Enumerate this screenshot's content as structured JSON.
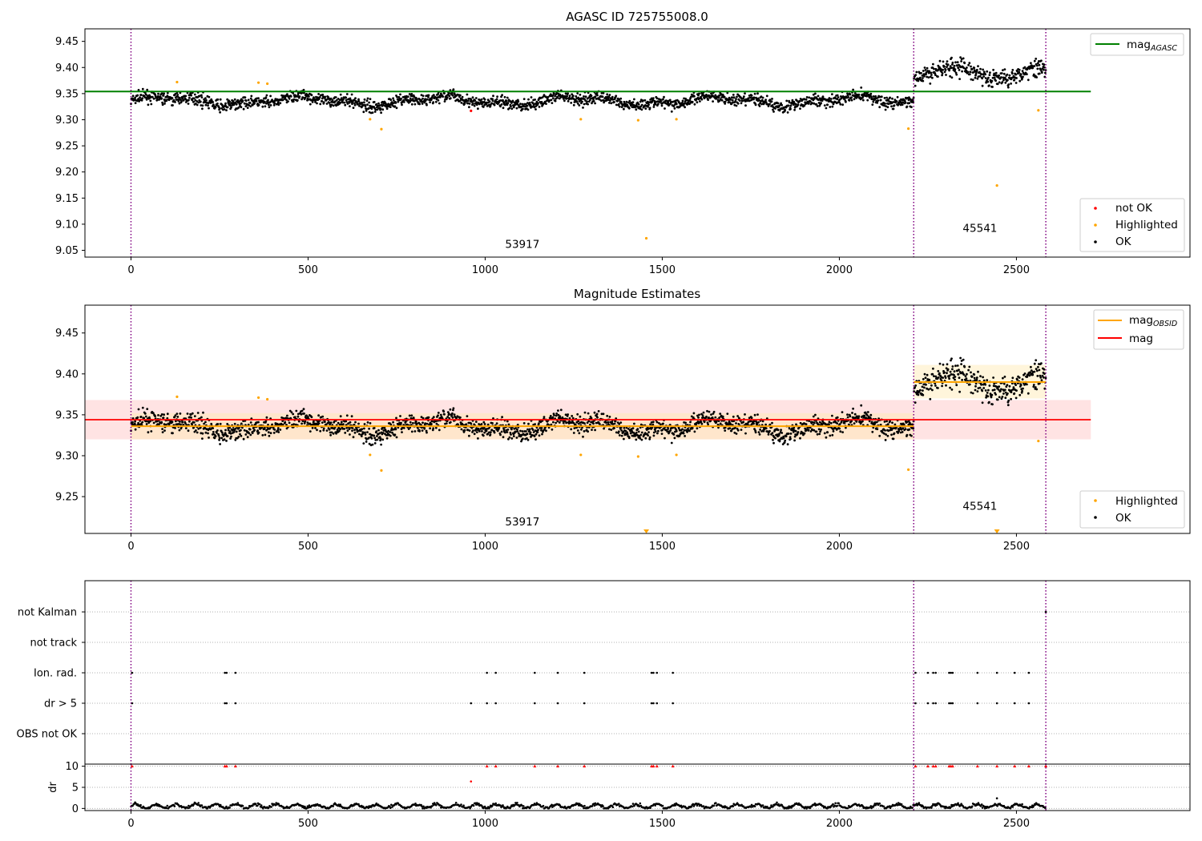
{
  "colors": {
    "ok": "#000000",
    "highlighted": "#ffa500",
    "not_ok": "#ff0000",
    "agasc_line": "#008000",
    "obsid_line": "#ffa500",
    "mag_line": "#ff0000",
    "obsid_boundary": "#800080",
    "band_red": "#ffcccc",
    "band_orange": "#ffe8b0"
  },
  "chart_data": [
    {
      "type": "scatter",
      "title": "AGASC ID 725755008.0",
      "xlabel": "",
      "ylabel": "",
      "xlim": [
        -130,
        2990
      ],
      "ylim": [
        9.037,
        9.474
      ],
      "xticks": [
        "0",
        "500",
        "1000",
        "1500",
        "2000",
        "2500"
      ],
      "yticks": [
        "9.05",
        "9.10",
        "9.15",
        "9.20",
        "9.25",
        "9.30",
        "9.35",
        "9.40",
        "9.45"
      ],
      "legend_top": {
        "position": "top-right",
        "entries": [
          {
            "label": "mag",
            "sub": "AGASC"
          }
        ]
      },
      "legend_bottom": {
        "position": "bottom-right",
        "entries": [
          "not OK",
          "Highlighted",
          "OK"
        ]
      },
      "mag_agasc": 9.354,
      "obsid_boundaries": [
        0,
        2210,
        2583
      ],
      "obsid_labels": [
        {
          "text": "53917",
          "x": 1105,
          "y": 9.055
        },
        {
          "text": "45541",
          "x": 2397,
          "y": 9.085
        }
      ],
      "segments": [
        {
          "x_start": 0,
          "x_end": 2210,
          "mean": 9.336,
          "spread": 0.011
        },
        {
          "x_start": 2210,
          "x_end": 2583,
          "mean": 9.39,
          "spread": 0.017
        }
      ],
      "highlighted_points": [
        [
          130,
          9.372
        ],
        [
          360,
          9.371
        ],
        [
          385,
          9.369
        ],
        [
          675,
          9.301
        ],
        [
          707,
          9.282
        ],
        [
          1270,
          9.301
        ],
        [
          1432,
          9.299
        ],
        [
          1455,
          9.073
        ],
        [
          1540,
          9.301
        ],
        [
          2195,
          9.283
        ],
        [
          2445,
          9.174
        ],
        [
          2562,
          9.318
        ]
      ],
      "not_ok_points": [
        [
          960,
          9.317
        ]
      ]
    },
    {
      "type": "scatter",
      "title": "Magnitude Estimates",
      "xlabel": "",
      "ylabel": "",
      "xlim": [
        -130,
        2990
      ],
      "ylim": [
        9.205,
        9.484
      ],
      "xticks": [
        "0",
        "500",
        "1000",
        "1500",
        "2000",
        "2500"
      ],
      "yticks": [
        "9.25",
        "9.30",
        "9.35",
        "9.40",
        "9.45"
      ],
      "legend_top": {
        "position": "top-right",
        "entries": [
          {
            "label": "mag",
            "sub": "OBSID"
          },
          {
            "label": "mag",
            "sub": ""
          }
        ]
      },
      "legend_bottom": {
        "position": "bottom-right",
        "entries": [
          "Highlighted",
          "OK"
        ]
      },
      "mag": 9.344,
      "mag_band": [
        9.32,
        9.368
      ],
      "obsid_mags": [
        {
          "x_start": 0,
          "x_end": 2210,
          "mag": 9.336,
          "band": [
            9.32,
            9.352
          ]
        },
        {
          "x_start": 2210,
          "x_end": 2583,
          "mag": 9.39,
          "band": [
            9.37,
            9.411
          ]
        }
      ],
      "obsid_labels": [
        {
          "text": "53917",
          "x": 1105,
          "y": 9.215
        },
        {
          "text": "45541",
          "x": 2397,
          "y": 9.234
        }
      ],
      "offscale_markers": [
        [
          1455
        ],
        [
          2445
        ]
      ]
    },
    {
      "type": "scatter",
      "title": "",
      "xlabel": "",
      "ylabel": "",
      "categories": [
        "not Kalman",
        "not track",
        "Ion. rad.",
        "dr > 5",
        "OBS not OK"
      ],
      "flag_points": {
        "Ion. rad.": [
          3,
          265,
          270,
          295,
          1005,
          1030,
          1140,
          1205,
          1280,
          1470,
          1475,
          1485,
          1530,
          2215,
          2250,
          2265,
          2272,
          2310,
          2315,
          2320,
          2390,
          2445,
          2495,
          2535
        ],
        "dr > 5": [
          3,
          265,
          270,
          295,
          960,
          1005,
          1030,
          1140,
          1205,
          1280,
          1470,
          1475,
          1485,
          1530,
          2215,
          2250,
          2265,
          2272,
          2310,
          2315,
          2320,
          2390,
          2445,
          2495,
          2535
        ],
        "not Kalman": [
          2583
        ]
      }
    },
    {
      "type": "scatter",
      "title": "",
      "xlabel": "",
      "ylabel": "dr",
      "xlim": [
        -130,
        2990
      ],
      "ylim": [
        -0.5,
        10.5
      ],
      "xticks": [
        "0",
        "500",
        "1000",
        "1500",
        "2000",
        "2500"
      ],
      "yticks": [
        "0",
        "5",
        "10"
      ],
      "capped_points": [
        3,
        265,
        270,
        295,
        1005,
        1030,
        1140,
        1205,
        1280,
        1470,
        1475,
        1485,
        1530,
        2215,
        2250,
        2265,
        2272,
        2310,
        2315,
        2320,
        2390,
        2445,
        2495,
        2535,
        2583
      ],
      "extra_points": [
        [
          960,
          6.4
        ],
        [
          2445,
          2.4
        ]
      ]
    }
  ]
}
